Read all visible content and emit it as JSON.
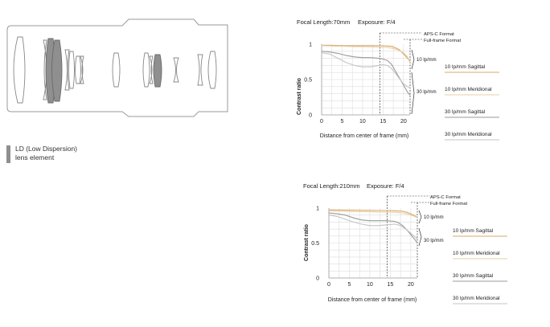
{
  "lens_diagram": {
    "legend": {
      "line1": "LD (Low Dispersion)",
      "line2": "lens element",
      "swatch_color": "#8f8f8f"
    }
  },
  "chart_data": [
    {
      "type": "line",
      "header": {
        "focal": "Focal Length:70mm",
        "exposure": "Exposure: F/4"
      },
      "xlabel": "Distance from center of frame (mm)",
      "ylabel": "Contrast ratio",
      "xlim": [
        0,
        21.6
      ],
      "ylim": [
        0,
        1
      ],
      "xticks": [
        0,
        5,
        10,
        15,
        20
      ],
      "yticks": [
        {
          "v": 0,
          "t": "0"
        },
        {
          "v": 0.5,
          "t": "0.5"
        },
        {
          "v": 1,
          "t": "1"
        }
      ],
      "apsc_x": 14.2,
      "fullframe_x": 21.6,
      "format_labels": {
        "apsc": "APS-C Format",
        "ff": "Full-frame Format"
      },
      "bracket_labels": {
        "b10": "10 lp/mm",
        "b30": "30 lp/mm"
      },
      "legend": [
        {
          "label": "10 lp/mm Sagittal",
          "color": "#d9a86a"
        },
        {
          "label": "10 lp/mm Meridional",
          "color": "#e8cfa6"
        },
        {
          "label": "30 lp/mm Sagittal",
          "color": "#9a9a9a"
        },
        {
          "label": "30 lp/mm Meridional",
          "color": "#c4c4c4"
        }
      ],
      "series": [
        {
          "color": "#d9a86a",
          "dash": false,
          "x": [
            0,
            2,
            5,
            8,
            10,
            12,
            14,
            15,
            16,
            17,
            18,
            19,
            20,
            21,
            21.6
          ],
          "y": [
            0.985,
            0.985,
            0.98,
            0.98,
            0.98,
            0.98,
            0.978,
            0.977,
            0.975,
            0.97,
            0.95,
            0.92,
            0.86,
            0.8,
            0.75
          ]
        },
        {
          "color": "#e8cfa6",
          "dash": false,
          "x": [
            0,
            2,
            5,
            8,
            10,
            12,
            14,
            16,
            17,
            18,
            19,
            20,
            21,
            21.6
          ],
          "y": [
            0.98,
            0.975,
            0.97,
            0.965,
            0.965,
            0.963,
            0.96,
            0.955,
            0.945,
            0.93,
            0.91,
            0.88,
            0.82,
            0.74
          ]
        },
        {
          "color": "#9a9a9a",
          "dash": false,
          "x": [
            0,
            2,
            4,
            6,
            8,
            10,
            12,
            14,
            15,
            16,
            17,
            18,
            19,
            20,
            21,
            21.6
          ],
          "y": [
            0.9,
            0.89,
            0.87,
            0.84,
            0.82,
            0.81,
            0.81,
            0.8,
            0.79,
            0.77,
            0.72,
            0.62,
            0.52,
            0.42,
            0.32,
            0.28
          ]
        },
        {
          "color": "#c4c4c4",
          "dash": false,
          "x": [
            0,
            2,
            4,
            6,
            8,
            10,
            12,
            14,
            15,
            16,
            17,
            18,
            19,
            20,
            21,
            21.6
          ],
          "y": [
            0.88,
            0.86,
            0.8,
            0.74,
            0.7,
            0.68,
            0.68,
            0.7,
            0.71,
            0.7,
            0.66,
            0.59,
            0.51,
            0.44,
            0.4,
            0.38
          ]
        }
      ]
    },
    {
      "type": "line",
      "header": {
        "focal": "Focal Length:210mm",
        "exposure": "Exposure: F/4"
      },
      "xlabel": "Distance from center of frame (mm)",
      "ylabel": "Contrast ratio",
      "xlim": [
        0,
        21.6
      ],
      "ylim": [
        0,
        1
      ],
      "xticks": [
        0,
        5,
        10,
        15,
        20
      ],
      "yticks": [
        {
          "v": 0,
          "t": "0"
        },
        {
          "v": 0.5,
          "t": "0.5"
        },
        {
          "v": 1,
          "t": "1"
        }
      ],
      "apsc_x": 14.2,
      "fullframe_x": 21.6,
      "format_labels": {
        "apsc": "APS-C Format",
        "ff": "Full-frame Format"
      },
      "bracket_labels": {
        "b10": "10 lp/mm",
        "b30": "30 lp/mm"
      },
      "legend": [
        {
          "label": "10 lp/mm Sagittal",
          "color": "#d9a86a"
        },
        {
          "label": "10 lp/mm Meridional",
          "color": "#e8cfa6"
        },
        {
          "label": "30 lp/mm Sagittal",
          "color": "#9a9a9a"
        },
        {
          "label": "30 lp/mm Meridional",
          "color": "#c4c4c4"
        }
      ],
      "series": [
        {
          "color": "#d9a86a",
          "dash": false,
          "x": [
            0,
            3,
            6,
            9,
            12,
            14,
            16,
            18,
            19,
            20,
            21,
            21.6
          ],
          "y": [
            0.975,
            0.972,
            0.97,
            0.968,
            0.966,
            0.965,
            0.962,
            0.955,
            0.94,
            0.92,
            0.89,
            0.87
          ]
        },
        {
          "color": "#e8cfa6",
          "dash": false,
          "x": [
            0,
            3,
            6,
            9,
            12,
            14,
            16,
            18,
            19,
            20,
            21,
            21.6
          ],
          "y": [
            0.96,
            0.955,
            0.95,
            0.948,
            0.945,
            0.944,
            0.94,
            0.93,
            0.92,
            0.9,
            0.88,
            0.86
          ]
        },
        {
          "color": "#9a9a9a",
          "dash": false,
          "x": [
            0,
            2,
            4,
            6,
            8,
            10,
            12,
            14,
            16,
            17,
            18,
            19,
            20,
            21,
            21.6
          ],
          "y": [
            0.93,
            0.92,
            0.9,
            0.86,
            0.83,
            0.82,
            0.82,
            0.82,
            0.81,
            0.79,
            0.75,
            0.69,
            0.62,
            0.55,
            0.5
          ]
        },
        {
          "color": "#c4c4c4",
          "dash": false,
          "x": [
            0,
            2,
            4,
            6,
            8,
            10,
            12,
            14,
            16,
            17,
            18,
            19,
            20,
            21,
            21.6
          ],
          "y": [
            0.9,
            0.88,
            0.84,
            0.8,
            0.77,
            0.75,
            0.75,
            0.76,
            0.77,
            0.76,
            0.73,
            0.69,
            0.64,
            0.59,
            0.56
          ]
        }
      ]
    }
  ]
}
